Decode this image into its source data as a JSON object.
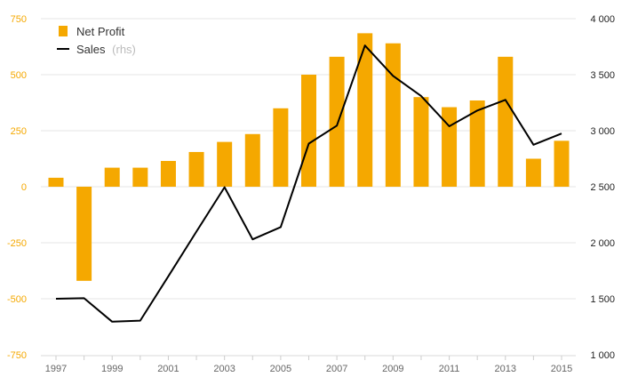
{
  "chart_data": {
    "type": "bar",
    "x": [
      1997,
      1998,
      1999,
      2000,
      2001,
      2002,
      2003,
      2004,
      2005,
      2006,
      2007,
      2008,
      2009,
      2010,
      2011,
      2012,
      2013,
      2014,
      2015
    ],
    "xtick_labels": [
      "1997",
      "1999",
      "2001",
      "2003",
      "2005",
      "2007",
      "2009",
      "2011",
      "2013",
      "2015"
    ],
    "series": [
      {
        "name": "Net Profit",
        "type": "bar",
        "axis": "left",
        "color": "#f5a800",
        "values": [
          40,
          -420,
          85,
          85,
          115,
          155,
          200,
          235,
          350,
          500,
          580,
          685,
          640,
          400,
          355,
          385,
          580,
          125,
          205
        ]
      },
      {
        "name": "Sales",
        "name_suffix": "(rhs)",
        "type": "line",
        "axis": "right",
        "color": "#000000",
        "values": [
          1500,
          1505,
          1295,
          1305,
          1700,
          2100,
          2495,
          2030,
          2140,
          2885,
          3045,
          3760,
          3490,
          3310,
          3040,
          3180,
          3275,
          2875,
          2975
        ]
      }
    ],
    "y_left": {
      "lim": [
        -750,
        750
      ],
      "ticks": [
        750,
        500,
        250,
        0,
        -250,
        -500,
        -750
      ],
      "tick_labels": [
        "750",
        "500",
        "250",
        "0",
        "-250",
        "-500",
        "-750"
      ],
      "color": "#f5a800"
    },
    "y_right": {
      "lim": [
        1000,
        4000
      ],
      "ticks": [
        4000,
        3500,
        3000,
        2500,
        2000,
        1500,
        1000
      ],
      "tick_labels": [
        "4 000",
        "3 500",
        "3 000",
        "2 500",
        "2 000",
        "1 500",
        "1 000"
      ],
      "color": "#222222"
    },
    "grid": true,
    "legend_position": "top-left"
  }
}
